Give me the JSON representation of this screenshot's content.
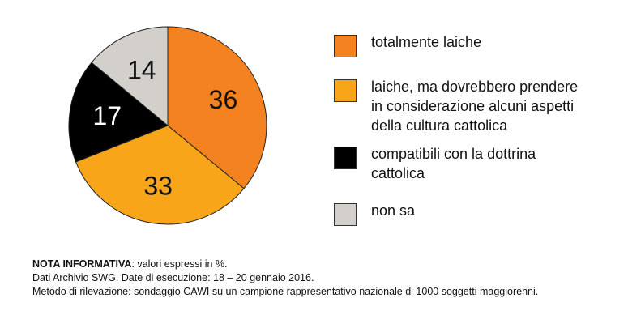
{
  "chart_data": {
    "type": "pie",
    "title": "",
    "slices": [
      {
        "label": "totalmente laiche",
        "value": 36,
        "color": "#f58220"
      },
      {
        "label": "laiche, ma dovrebbero prendere in considerazione alcuni aspetti della cultura cattolica",
        "value": 33,
        "color": "#f9a51a"
      },
      {
        "label": "compatibili con la dottrina cattolica",
        "value": 17,
        "color": "#000000"
      },
      {
        "label": "non sa",
        "value": 14,
        "color": "#d3d0cb"
      }
    ],
    "data_label_colors": [
      "#111111",
      "#111111",
      "#ffffff",
      "#111111"
    ],
    "legend_placement": "right"
  },
  "legend": {
    "items": [
      {
        "lines": [
          "totalmente laiche"
        ],
        "color": "#f58220"
      },
      {
        "lines": [
          "laiche, ma dovrebbero prendere",
          "in considerazione alcuni aspetti",
          "della cultura cattolica"
        ],
        "color": "#f9a51a"
      },
      {
        "lines": [
          "compatibili con la dottrina",
          "cattolica"
        ],
        "color": "#000000"
      },
      {
        "lines": [
          "non sa"
        ],
        "color": "#d3d0cb"
      }
    ]
  },
  "notes": {
    "nota_bold": "NOTA INFORMATIVA",
    "nota_rest": ": valori espressi in %.",
    "dati": "Dati Archivio SWG. Date di esecuzione: 18 – 20 gennaio 2016.",
    "metodo": "Metodo di rilevazione: sondaggio CAWI su un campione rappresentativo nazionale di 1000 soggetti maggiorenni."
  }
}
